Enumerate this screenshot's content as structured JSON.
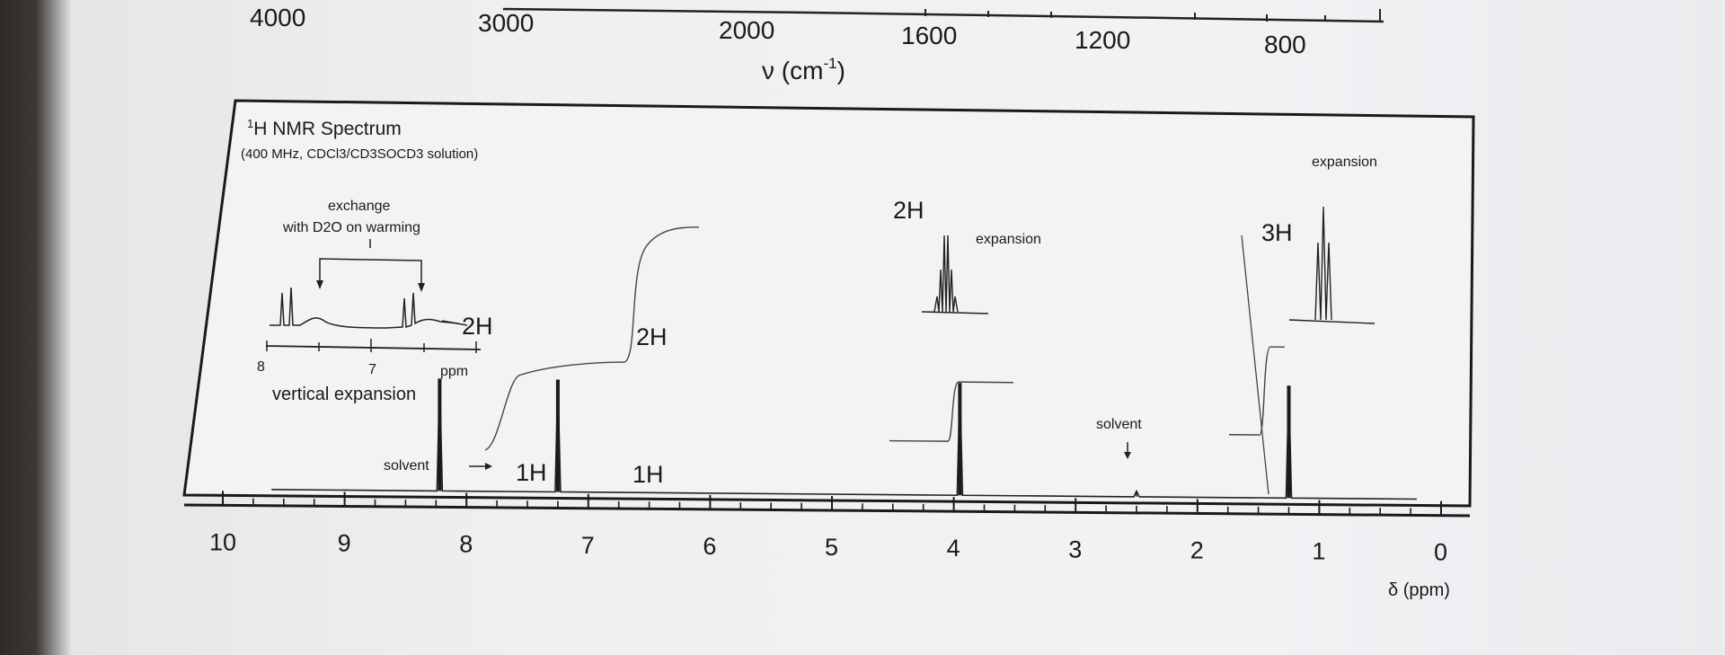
{
  "chart_data": [
    {
      "type": "line",
      "chart": "IR axis (partial)",
      "xlabel": "ν (cm⁻¹)",
      "xlabel_main": "ν (cm",
      "xlabel_sup": "-1",
      "xlabel_close": ")",
      "ticks": [
        "4000",
        "3000",
        "2000",
        "1600",
        "1200",
        "800"
      ]
    },
    {
      "type": "line",
      "title": "¹H NMR Spectrum",
      "title_sup": "1",
      "title_text": "H NMR Spectrum",
      "subtitle": "(400 MHz, CDCl3/CD3SOCD3 solution)",
      "xlabel": "δ (ppm)",
      "xlim": [
        10,
        0
      ],
      "x_ticks": [
        "10",
        "9",
        "8",
        "7",
        "6",
        "5",
        "4",
        "3",
        "2",
        "1",
        "0"
      ],
      "peaks": [
        {
          "delta": 8.22,
          "height": 1.0,
          "integration": "1H"
        },
        {
          "delta": 7.25,
          "height": 1.0,
          "integration": "1H"
        },
        {
          "delta": 3.95,
          "height": 1.0,
          "integration": "2H"
        },
        {
          "delta": 2.5,
          "height": 0.05,
          "integration": ""
        },
        {
          "delta": 1.25,
          "height": 1.0,
          "integration": "3H"
        }
      ],
      "integration_labels": [
        "1H",
        "1H",
        "2H",
        "2H",
        "3H"
      ],
      "solvent_labels": [
        "solvent",
        "solvent"
      ],
      "expansion_labels": [
        "expansion",
        "expansion"
      ],
      "inset": {
        "note_line1": "exchange",
        "note_line2": "with D2O on warming",
        "integration": "2H",
        "ticks": [
          "8",
          "7"
        ],
        "unit": "ppm",
        "caption": "vertical expansion"
      }
    }
  ]
}
